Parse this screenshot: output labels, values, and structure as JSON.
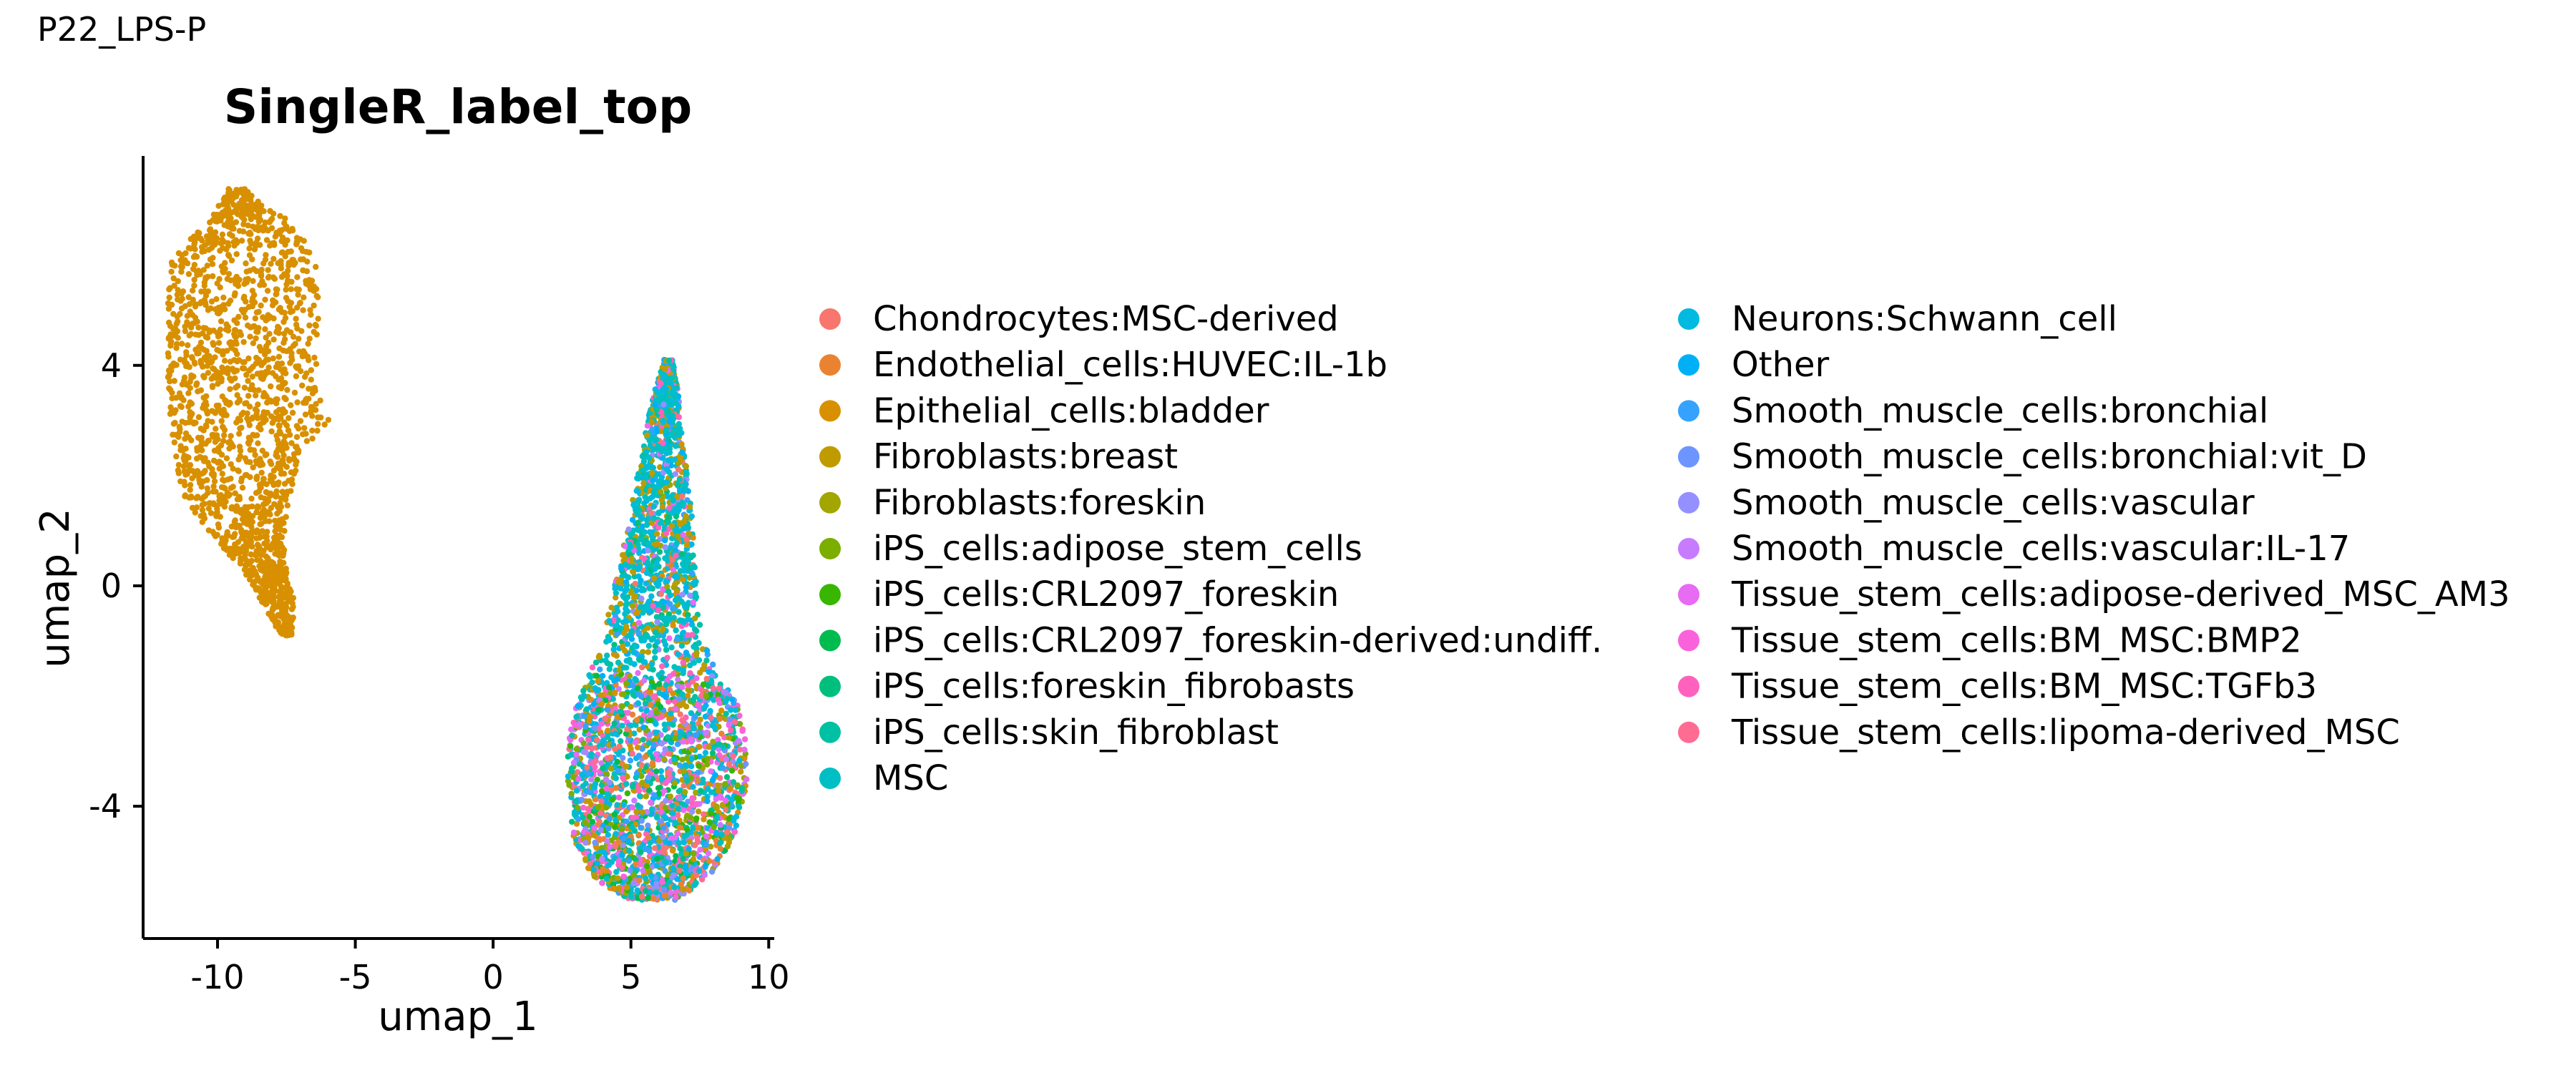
{
  "figure_title": "P22_LPS-P",
  "chart_data": {
    "type": "scatter",
    "title": "SingleR_label_top",
    "xlabel": "umap_1",
    "ylabel": "umap_2",
    "xlim": [
      -12.7,
      10.2
    ],
    "ylim": [
      -6.4,
      7.8
    ],
    "xticks": [
      -10,
      -5,
      0,
      5,
      10
    ],
    "xtick_labels": [
      "-10",
      "-5",
      "0",
      "5",
      "10"
    ],
    "yticks": [
      -4,
      0,
      4
    ],
    "ytick_labels": [
      "-4",
      "0",
      "4"
    ],
    "grid": false,
    "legend_position": "right",
    "legend_columns": 2,
    "legend": [
      {
        "label": "Chondrocytes:MSC-derived",
        "color": "#F8766D"
      },
      {
        "label": "Endothelial_cells:HUVEC:IL-1b",
        "color": "#EA8331"
      },
      {
        "label": "Epithelial_cells:bladder",
        "color": "#D89000"
      },
      {
        "label": "Fibroblasts:breast",
        "color": "#C09B00"
      },
      {
        "label": "Fibroblasts:foreskin",
        "color": "#A3A500"
      },
      {
        "label": "iPS_cells:adipose_stem_cells",
        "color": "#7CAE00"
      },
      {
        "label": "iPS_cells:CRL2097_foreskin",
        "color": "#39B600"
      },
      {
        "label": "iPS_cells:CRL2097_foreskin-derived:undiff.",
        "color": "#00BB4E"
      },
      {
        "label": "iPS_cells:foreskin_fibrobasts",
        "color": "#00BF7D"
      },
      {
        "label": "iPS_cells:skin_fibroblast",
        "color": "#00C1A3"
      },
      {
        "label": "MSC",
        "color": "#00BFC4"
      },
      {
        "label": "Neurons:Schwann_cell",
        "color": "#00BAE0"
      },
      {
        "label": "Other",
        "color": "#00B0F6"
      },
      {
        "label": "Smooth_muscle_cells:bronchial",
        "color": "#35A2FF"
      },
      {
        "label": "Smooth_muscle_cells:bronchial:vit_D",
        "color": "#6E95FF"
      },
      {
        "label": "Smooth_muscle_cells:vascular",
        "color": "#9590FF"
      },
      {
        "label": "Smooth_muscle_cells:vascular:IL-17",
        "color": "#C77CFF"
      },
      {
        "label": "Tissue_stem_cells:adipose-derived_MSC_AM3",
        "color": "#E76BF3"
      },
      {
        "label": "Tissue_stem_cells:BM_MSC:BMP2",
        "color": "#FA62DB"
      },
      {
        "label": "Tissue_stem_cells:BM_MSC:TGFb3",
        "color": "#FF62BC"
      },
      {
        "label": "Tissue_stem_cells:lipoma-derived_MSC",
        "color": "#FF6C91"
      }
    ],
    "clusters": [
      {
        "region": "left",
        "dominant_label": "Epithelial_cells:bladder",
        "x_range": [
          -11.9,
          -5.9
        ],
        "y_range": [
          -0.9,
          7.2
        ],
        "approx_points": 1800
      },
      {
        "region": "right",
        "composition": "mixed; upper lobe mostly MSC, Neurons:Schwann_cell, Fibroblasts:breast; lower lobe mixes all labels",
        "x_range": [
          2.7,
          9.2
        ],
        "y_range": [
          -5.7,
          4.1
        ],
        "approx_points": 3600
      }
    ]
  }
}
